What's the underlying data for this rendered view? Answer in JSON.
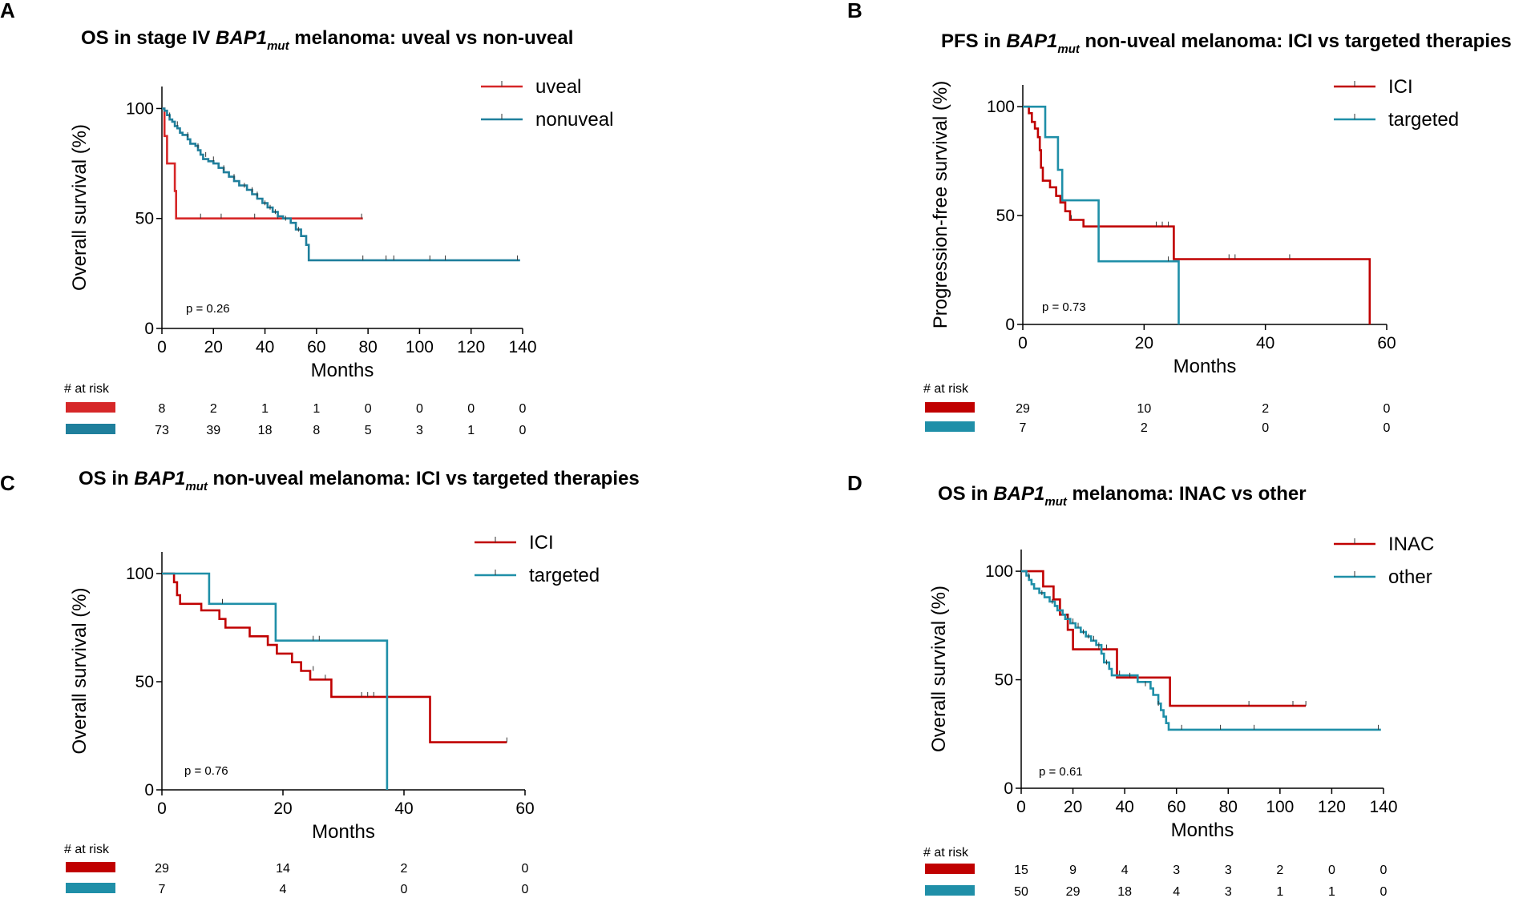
{
  "chart_data": [
    {
      "id": "A",
      "type": "line",
      "panel_label": "A",
      "title": {
        "before": "OS in stage IV ",
        "gene": "BAP1",
        "sub": "mut",
        "after": " melanoma: uveal vs non-uveal"
      },
      "xlabel": "Months",
      "ylabel": "Overall survival (%)",
      "xlim": [
        0,
        140
      ],
      "ylim": [
        0,
        110
      ],
      "xticks": [
        0,
        20,
        40,
        60,
        80,
        100,
        120,
        140
      ],
      "yticks": [
        0,
        50,
        100
      ],
      "pvalue": "p = 0.26",
      "risk_header": "# at risk",
      "series": [
        {
          "name": "uveal",
          "color": "#d62728",
          "values": [
            [
              0,
              100
            ],
            [
              1,
              87.5
            ],
            [
              2,
              75
            ],
            [
              4.5,
              75
            ],
            [
              5,
              62.5
            ],
            [
              5.5,
              50
            ],
            [
              78,
              50
            ]
          ],
          "censor": [
            [
              15,
              50
            ],
            [
              23,
              50
            ],
            [
              36,
              50
            ],
            [
              45,
              50
            ],
            [
              77.5,
              50
            ]
          ],
          "risk": [
            "8",
            "2",
            "1",
            "1",
            "0",
            "0",
            "0",
            "0"
          ]
        },
        {
          "name": "nonuveal",
          "color": "#1f7f9c",
          "values": [
            [
              0,
              100
            ],
            [
              1,
              99
            ],
            [
              2,
              97
            ],
            [
              3,
              95
            ],
            [
              4,
              94
            ],
            [
              5,
              92
            ],
            [
              6,
              91
            ],
            [
              7,
              89
            ],
            [
              8,
              88
            ],
            [
              10,
              86
            ],
            [
              11,
              84
            ],
            [
              13,
              83
            ],
            [
              14,
              81
            ],
            [
              15,
              79
            ],
            [
              16,
              77
            ],
            [
              18,
              76
            ],
            [
              20,
              75
            ],
            [
              22,
              73
            ],
            [
              24,
              71
            ],
            [
              26,
              69
            ],
            [
              28,
              67
            ],
            [
              30,
              65
            ],
            [
              33,
              63
            ],
            [
              35,
              61
            ],
            [
              37,
              59
            ],
            [
              39,
              57
            ],
            [
              41,
              55
            ],
            [
              43,
              53
            ],
            [
              45,
              51
            ],
            [
              47,
              50
            ],
            [
              50,
              48
            ],
            [
              52,
              45
            ],
            [
              54,
              42
            ],
            [
              56,
              38
            ],
            [
              57,
              31
            ],
            [
              139,
              31
            ]
          ],
          "censor": [
            [
              3,
              96
            ],
            [
              6,
              92
            ],
            [
              10,
              87
            ],
            [
              14,
              82
            ],
            [
              17,
              78
            ],
            [
              20,
              76
            ],
            [
              24,
              72
            ],
            [
              28,
              68
            ],
            [
              32,
              64
            ],
            [
              35,
              62
            ],
            [
              37,
              60
            ],
            [
              40,
              56
            ],
            [
              42,
              54
            ],
            [
              44,
              52
            ],
            [
              48,
              49
            ],
            [
              53,
              44
            ],
            [
              78,
              31
            ],
            [
              87,
              31
            ],
            [
              90,
              31
            ],
            [
              104,
              31
            ],
            [
              110,
              31
            ],
            [
              138,
              31
            ]
          ],
          "risk": [
            "73",
            "39",
            "18",
            "8",
            "5",
            "3",
            "1",
            "0"
          ]
        }
      ]
    },
    {
      "id": "B",
      "type": "line",
      "panel_label": "B",
      "title": {
        "before": "PFS in ",
        "gene": "BAP1",
        "sub": "mut",
        "after": " non-uveal melanoma: ICI vs targeted therapies"
      },
      "xlabel": "Months",
      "ylabel": "Progression-free survival  (%)",
      "xlim": [
        0,
        60
      ],
      "ylim": [
        0,
        110
      ],
      "xticks": [
        0,
        20,
        40,
        60
      ],
      "yticks": [
        0,
        50,
        100
      ],
      "pvalue": "p = 0.73",
      "risk_header": "# at risk",
      "series": [
        {
          "name": "ICI",
          "color": "#c00000",
          "values": [
            [
              0,
              100
            ],
            [
              1,
              97
            ],
            [
              1.5,
              93
            ],
            [
              2,
              90
            ],
            [
              2.5,
              86
            ],
            [
              2.8,
              80
            ],
            [
              3,
              72
            ],
            [
              3.3,
              66
            ],
            [
              4.5,
              63
            ],
            [
              5.5,
              59
            ],
            [
              6.2,
              56
            ],
            [
              7,
              52
            ],
            [
              7.8,
              48
            ],
            [
              10,
              45
            ],
            [
              12,
              45
            ],
            [
              24.7,
              45
            ],
            [
              24.9,
              30
            ],
            [
              57,
              30
            ],
            [
              57.2,
              0
            ]
          ],
          "censor": [
            [
              8,
              48
            ],
            [
              22,
              45
            ],
            [
              23,
              45
            ],
            [
              24,
              45
            ],
            [
              34,
              30
            ],
            [
              35,
              30
            ],
            [
              44,
              30
            ]
          ],
          "risk": [
            "29",
            "10",
            "2",
            "0"
          ]
        },
        {
          "name": "targeted",
          "color": "#1f8fa8",
          "values": [
            [
              0,
              100
            ],
            [
              2,
              100
            ],
            [
              3.5,
              100
            ],
            [
              3.7,
              86
            ],
            [
              5.5,
              86
            ],
            [
              5.8,
              71
            ],
            [
              6.5,
              57
            ],
            [
              11.5,
              57
            ],
            [
              12.5,
              29
            ],
            [
              25.5,
              29
            ],
            [
              25.7,
              0
            ]
          ],
          "censor": [
            [
              24,
              29
            ]
          ],
          "risk": [
            "7",
            "2",
            "0",
            "0"
          ]
        }
      ]
    },
    {
      "id": "C",
      "type": "line",
      "panel_label": "C",
      "title": {
        "before": "OS in ",
        "gene": "BAP1",
        "sub": "mut",
        "after": " non-uveal melanoma: ICI vs targeted therapies"
      },
      "xlabel": "Months",
      "ylabel": "Overall survival (%)",
      "xlim": [
        0,
        60
      ],
      "ylim": [
        0,
        110
      ],
      "xticks": [
        0,
        20,
        40,
        60
      ],
      "yticks": [
        0,
        50,
        100
      ],
      "pvalue": "p = 0.76",
      "risk_header": "# at risk",
      "series": [
        {
          "name": "ICI",
          "color": "#c00000",
          "values": [
            [
              0,
              100
            ],
            [
              2,
              96
            ],
            [
              2.5,
              90
            ],
            [
              3,
              86
            ],
            [
              6,
              86
            ],
            [
              6.5,
              83
            ],
            [
              9,
              83
            ],
            [
              9.5,
              79
            ],
            [
              10.5,
              75
            ],
            [
              14,
              75
            ],
            [
              14.5,
              71
            ],
            [
              17,
              71
            ],
            [
              17.5,
              67
            ],
            [
              19,
              63
            ],
            [
              21,
              63
            ],
            [
              21.5,
              59
            ],
            [
              23,
              55
            ],
            [
              24.5,
              51
            ],
            [
              28,
              43
            ],
            [
              44,
              43
            ],
            [
              44.3,
              22
            ],
            [
              57,
              22
            ]
          ],
          "censor": [
            [
              25,
              55
            ],
            [
              27,
              51
            ],
            [
              33,
              43
            ],
            [
              34,
              43
            ],
            [
              35,
              43
            ],
            [
              57,
              22
            ]
          ],
          "risk": [
            "29",
            "14",
            "2",
            "0"
          ]
        },
        {
          "name": "targeted",
          "color": "#1f8fa8",
          "values": [
            [
              0,
              100
            ],
            [
              7.5,
              100
            ],
            [
              7.8,
              86
            ],
            [
              18.5,
              86
            ],
            [
              18.8,
              69
            ],
            [
              37,
              69
            ],
            [
              37.2,
              0
            ]
          ],
          "censor": [
            [
              10,
              86
            ],
            [
              25,
              69
            ],
            [
              26,
              69
            ]
          ],
          "risk": [
            "7",
            "4",
            "0",
            "0"
          ]
        }
      ]
    },
    {
      "id": "D",
      "type": "line",
      "panel_label": "D",
      "title": {
        "before": "OS in ",
        "gene": "BAP1",
        "sub": "mut",
        "after": " melanoma: INAC vs other"
      },
      "xlabel": "Months",
      "ylabel": "Overall survival (%)",
      "xlim": [
        0,
        140
      ],
      "ylim": [
        0,
        110
      ],
      "xticks": [
        0,
        20,
        40,
        60,
        80,
        100,
        120,
        140
      ],
      "yticks": [
        0,
        50,
        100
      ],
      "pvalue": "p = 0.61",
      "risk_header": "# at risk",
      "series": [
        {
          "name": "INAC",
          "color": "#c00000",
          "values": [
            [
              0,
              100
            ],
            [
              8,
              100
            ],
            [
              8.5,
              93
            ],
            [
              12,
              93
            ],
            [
              12.5,
              87
            ],
            [
              14,
              87
            ],
            [
              15,
              80
            ],
            [
              18,
              73
            ],
            [
              20,
              64
            ],
            [
              28,
              64
            ],
            [
              36,
              64
            ],
            [
              37,
              51
            ],
            [
              57,
              51
            ],
            [
              57.5,
              38
            ],
            [
              110,
              38
            ]
          ],
          "censor": [
            [
              30,
              64
            ],
            [
              33,
              64
            ],
            [
              88,
              38
            ],
            [
              105,
              38
            ],
            [
              110,
              38
            ]
          ],
          "risk": [
            "15",
            "9",
            "4",
            "3",
            "3",
            "2",
            "0",
            "0"
          ]
        },
        {
          "name": "other",
          "color": "#1f8fa8",
          "values": [
            [
              0,
              100
            ],
            [
              2,
              98
            ],
            [
              3,
              96
            ],
            [
              4,
              94
            ],
            [
              5,
              92
            ],
            [
              7,
              90
            ],
            [
              9,
              88
            ],
            [
              11,
              86
            ],
            [
              13,
              84
            ],
            [
              14,
              82
            ],
            [
              16,
              80
            ],
            [
              17,
              78
            ],
            [
              19,
              76
            ],
            [
              21,
              74
            ],
            [
              23,
              72
            ],
            [
              25,
              70
            ],
            [
              27,
              68
            ],
            [
              29,
              66
            ],
            [
              31,
              62
            ],
            [
              32,
              58
            ],
            [
              34,
              55
            ],
            [
              35,
              52
            ],
            [
              40,
              52
            ],
            [
              45,
              49
            ],
            [
              50,
              46
            ],
            [
              51,
              43
            ],
            [
              53,
              39
            ],
            [
              54,
              36
            ],
            [
              55,
              33
            ],
            [
              56,
              30
            ],
            [
              57,
              27
            ],
            [
              139,
              27
            ]
          ],
          "censor": [
            [
              3,
              97
            ],
            [
              8,
              89
            ],
            [
              12,
              85
            ],
            [
              18,
              78
            ],
            [
              20,
              76
            ],
            [
              22,
              74
            ],
            [
              24,
              71
            ],
            [
              26,
              69
            ],
            [
              28,
              68
            ],
            [
              30,
              65
            ],
            [
              33,
              57
            ],
            [
              38,
              52
            ],
            [
              42,
              51
            ],
            [
              48,
              47
            ],
            [
              53,
              38
            ],
            [
              62,
              27
            ],
            [
              77,
              27
            ],
            [
              90,
              27
            ],
            [
              138,
              27
            ]
          ],
          "risk": [
            "50",
            "29",
            "18",
            "4",
            "3",
            "1",
            "1",
            "0"
          ]
        }
      ]
    }
  ]
}
